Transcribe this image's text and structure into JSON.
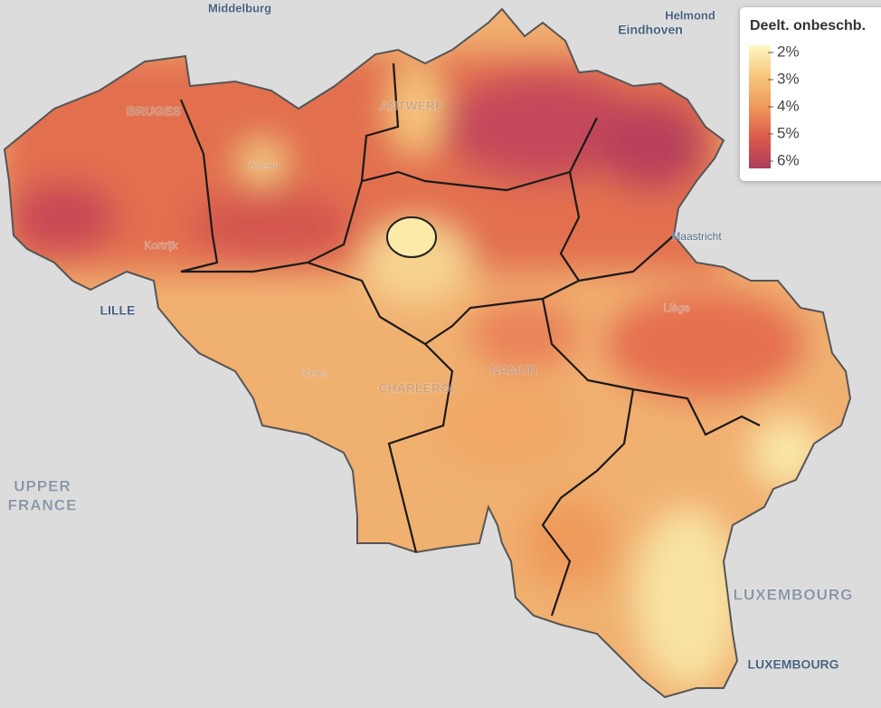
{
  "map": {
    "places": [
      {
        "label": "Middelburg"
      },
      {
        "label": "Helmond"
      },
      {
        "label": "Eindhoven"
      },
      {
        "label": "BRUGES"
      },
      {
        "label": "ANTWERP"
      },
      {
        "label": "Ghent"
      },
      {
        "label": "Kortrijk"
      },
      {
        "label": "Maastricht"
      },
      {
        "label": "LILLE"
      },
      {
        "label": "Liège"
      },
      {
        "label": "Mons"
      },
      {
        "label": "CHARLEROI"
      },
      {
        "label": "NAMUR"
      },
      {
        "label": "UPPER"
      },
      {
        "label": "FRANCE"
      },
      {
        "label": "LUXEMBOURG"
      },
      {
        "label": "LUXEMBOURG"
      }
    ],
    "legend": {
      "title": "Deelt. onbeschb.",
      "ticks": [
        {
          "value": 2,
          "label": "2%",
          "color": "#fdf7c4"
        },
        {
          "value": 3,
          "label": "3%",
          "color": "#f6c67c"
        },
        {
          "value": 4,
          "label": "4%",
          "color": "#ee995a"
        },
        {
          "value": 5,
          "label": "5%",
          "color": "#dc5a4c"
        },
        {
          "value": 6,
          "label": "6%",
          "color": "#ac3c58"
        }
      ]
    }
  }
}
